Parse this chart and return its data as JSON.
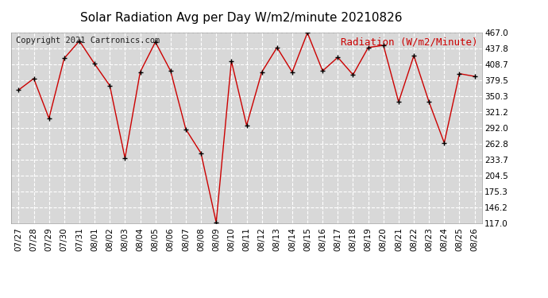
{
  "title": "Solar Radiation Avg per Day W/m2/minute 20210826",
  "copyright": "Copyright 2021 Cartronics.com",
  "legend_label": "Radiation (W/m2/Minute)",
  "dates": [
    "07/27",
    "07/28",
    "07/29",
    "07/30",
    "07/31",
    "08/01",
    "08/02",
    "08/03",
    "08/04",
    "08/05",
    "08/06",
    "08/07",
    "08/08",
    "08/09",
    "08/10",
    "08/11",
    "08/12",
    "08/13",
    "08/14",
    "08/15",
    "08/16",
    "08/17",
    "08/18",
    "08/19",
    "08/20",
    "08/21",
    "08/22",
    "08/23",
    "08/24",
    "08/25",
    "08/26"
  ],
  "values": [
    362,
    383,
    310,
    420,
    452,
    410,
    370,
    237,
    395,
    450,
    397,
    290,
    246,
    119,
    415,
    297,
    395,
    440,
    395,
    467,
    397,
    422,
    390,
    440,
    444,
    340,
    425,
    340,
    265,
    392,
    387
  ],
  "line_color": "#cc0000",
  "marker_color": "#000000",
  "bg_color": "#ffffff",
  "plot_bg_color": "#d8d8d8",
  "grid_color": "#ffffff",
  "ymin": 117.0,
  "ymax": 467.0,
  "yticks": [
    117.0,
    146.2,
    175.3,
    204.5,
    233.7,
    262.8,
    292.0,
    321.2,
    350.3,
    379.5,
    408.7,
    437.8,
    467.0
  ],
  "title_fontsize": 11,
  "copyright_fontsize": 7.5,
  "legend_fontsize": 9,
  "tick_fontsize": 7.5
}
